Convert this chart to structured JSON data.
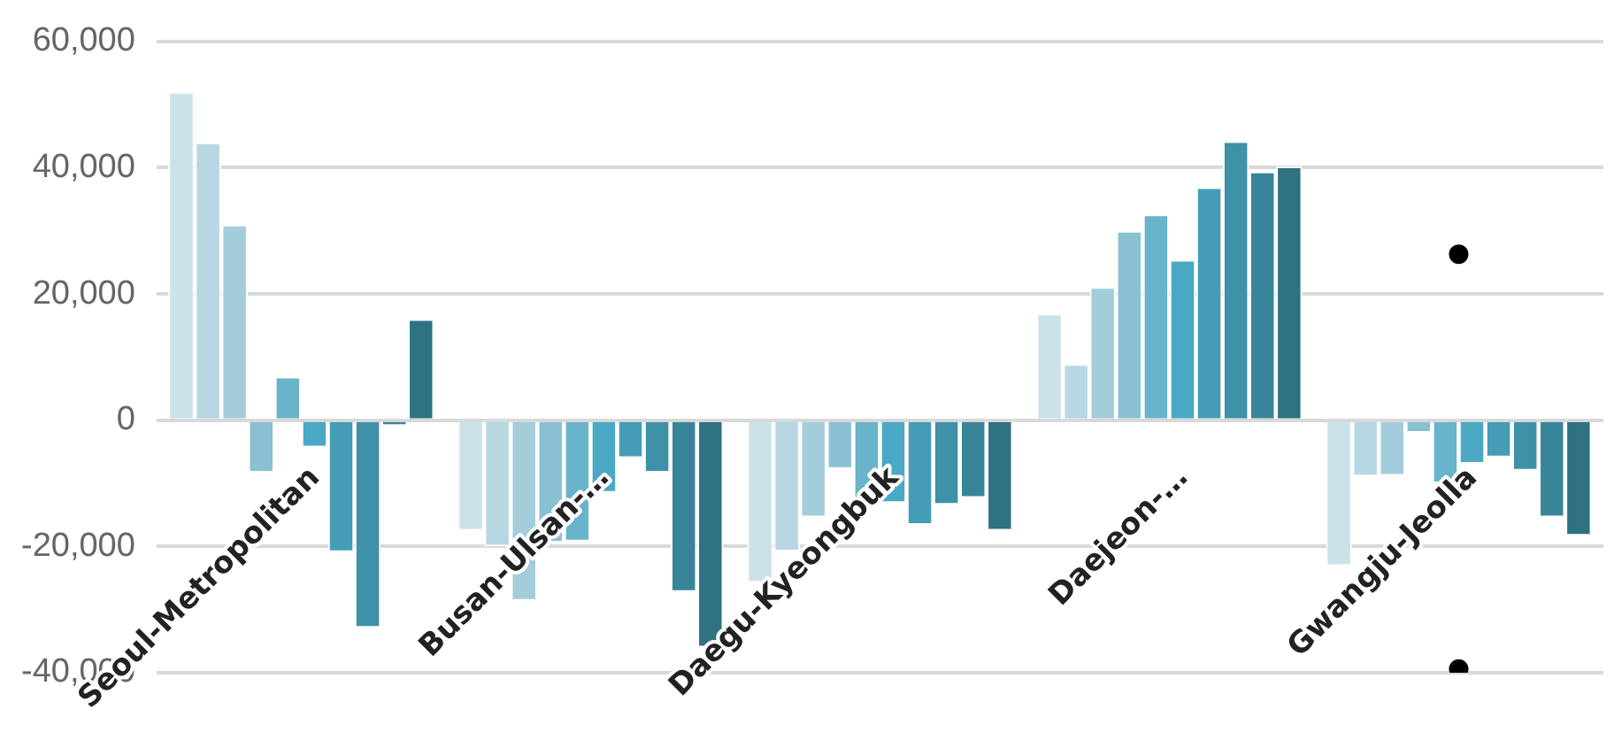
{
  "chart_data": {
    "type": "bar",
    "categories": [
      "Seoul-Metropolitan",
      "Busan-Ulsan-…",
      "Daegu-Kyeongbuk",
      "Daejeon-…",
      "Gwangju-Jeolla"
    ],
    "series": [
      {
        "color": "#cce2ea",
        "values": [
          52000,
          -17500,
          -25700,
          16900,
          -23100
        ]
      },
      {
        "color": "#b7d7e2",
        "values": [
          44000,
          -20000,
          -20800,
          8900,
          -8900
        ]
      },
      {
        "color": "#a3cddb",
        "values": [
          31000,
          -28600,
          -15400,
          21100,
          -8800
        ]
      },
      {
        "color": "#89c1d3",
        "values": [
          -8300,
          -19400,
          -7700,
          30000,
          -2000
        ]
      },
      {
        "color": "#68b4cb",
        "values": [
          6900,
          -19200,
          -13000,
          32600,
          -10000
        ]
      },
      {
        "color": "#4aa8c4",
        "values": [
          -4300,
          -11500,
          -13100,
          25400,
          -6900
        ]
      },
      {
        "color": "#449db5",
        "values": [
          -20900,
          -6000,
          -16600,
          36900,
          -5900
        ]
      },
      {
        "color": "#3e91a7",
        "values": [
          -32900,
          -8300,
          -13400,
          44200,
          -8000
        ]
      },
      {
        "color": "#388599",
        "values": [
          -900,
          -27200,
          -12300,
          39400,
          -15400
        ]
      },
      {
        "color": "#2f7282",
        "values": [
          16000,
          -36000,
          -17500,
          40200,
          -18300
        ]
      },
      {
        "type": "scatter",
        "x": [
          "Gwangju-Jeolla",
          "Gwangju-Jeolla"
        ],
        "values": [
          26300,
          -39400
        ],
        "color": "#000000",
        "marker": "circle"
      }
    ],
    "ylim": [
      -40000,
      60000
    ],
    "yticks": [
      {
        "value": -40000,
        "label": "-40,000"
      },
      {
        "value": -20000,
        "label": "-20,000"
      },
      0,
      {
        "value": 20000,
        "label": "20,000"
      },
      {
        "value": 40000,
        "label": "40,000"
      },
      {
        "value": 60000,
        "label": "60,000"
      }
    ],
    "grid": "y"
  }
}
